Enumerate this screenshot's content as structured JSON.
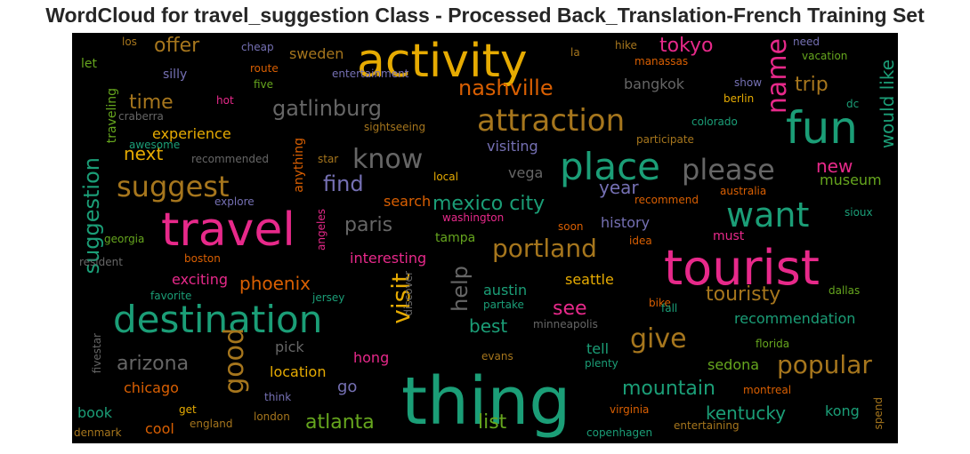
{
  "title": "WordCloud for travel_suggestion Class - Processed Back_Translation-French Training Set",
  "colors": {
    "background": "#000000",
    "green": "#1b9e77",
    "orange": "#d95f02",
    "purple": "#7570b3",
    "pink": "#e7298a",
    "olive": "#66a61e",
    "gold": "#e6ab02",
    "brown": "#a6761d",
    "gray": "#666666"
  },
  "words": [
    "thing",
    "tourist",
    "travel",
    "activity",
    "destination",
    "fun",
    "place",
    "attraction",
    "want",
    "please",
    "suggest",
    "know",
    "give",
    "visit",
    "name",
    "good",
    "popular",
    "portland",
    "nashville",
    "gatlinburg",
    "mexico city",
    "suggestion",
    "help",
    "arizona",
    "mountain",
    "atlanta",
    "tokyo",
    "would like",
    "find",
    "time",
    "offer",
    "see",
    "best",
    "paris",
    "touristy",
    "trip",
    "kentucky",
    "phoenix",
    "next",
    "year",
    "list",
    "new",
    "history",
    "chicago",
    "location",
    "experience",
    "bangkok",
    "seattle",
    "austin",
    "recommendation",
    "sedona",
    "visiting",
    "search",
    "museum",
    "interesting",
    "go",
    "sweden",
    "hong",
    "traveling",
    "exciting",
    "tampa",
    "pick",
    "tell",
    "vega",
    "anything",
    "kong",
    "book",
    "cool",
    "los",
    "cheap",
    "route",
    "five",
    "silly",
    "let",
    "hot",
    "craberra",
    "awesome",
    "recommended",
    "entertainment",
    "la",
    "hike",
    "manassas",
    "vacation",
    "need",
    "show",
    "berlin",
    "dc",
    "colorado",
    "participate",
    "sightseeing",
    "star",
    "local",
    "explore",
    "recommend",
    "australia",
    "sioux",
    "washington",
    "georgia",
    "soon",
    "idea",
    "must",
    "resident",
    "boston",
    "angeles",
    "favorite",
    "jersey",
    "discover",
    "partake",
    "bike",
    "fall",
    "dallas",
    "minneapolis",
    "fivestar",
    "florida",
    "evans",
    "plenty",
    "montreal",
    "think",
    "virginia",
    "get",
    "london",
    "england",
    "denmark",
    "copenhagen",
    "entertaining",
    "spend"
  ]
}
